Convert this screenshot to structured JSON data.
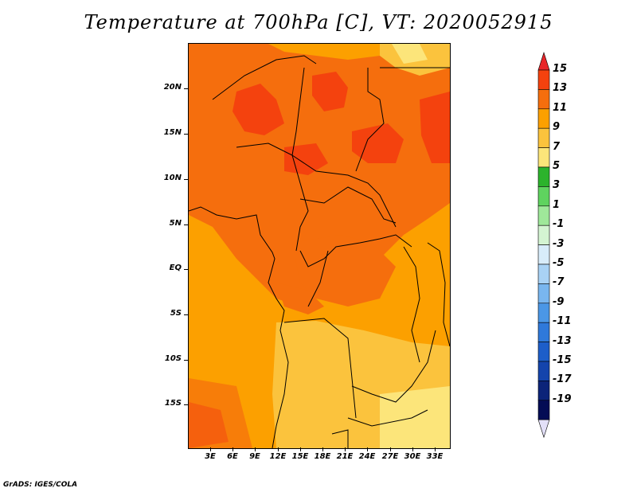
{
  "title": "Temperature at 700hPa [C], VT: 2020052915",
  "footer": "GrADS: IGES/COLA",
  "map": {
    "region": "Central Africa",
    "y_axis_labels": [
      "20N",
      "15N",
      "10N",
      "5N",
      "EQ",
      "5S",
      "10S",
      "15S"
    ],
    "x_axis_labels": [
      "3E",
      "6E",
      "9E",
      "12E",
      "15E",
      "18E",
      "21E",
      "24E",
      "27E",
      "30E",
      "33E"
    ]
  },
  "colorbar": {
    "labels": [
      "15",
      "13",
      "11",
      "9",
      "7",
      "5",
      "3",
      "1",
      "-1",
      "-3",
      "-5",
      "-7",
      "-9",
      "-11",
      "-13",
      "-15",
      "-17",
      "-19"
    ],
    "colors": [
      "#e8262a",
      "#f4420e",
      "#f56e0d",
      "#fca000",
      "#fbc33d",
      "#fce57a",
      "#2cb32c",
      "#5fd35f",
      "#9fe89a",
      "#d4f4d2",
      "#d8ecfa",
      "#a9d2f5",
      "#79b6ef",
      "#4b97e6",
      "#2f79da",
      "#1d5ec9",
      "#1444ac",
      "#0c2479",
      "#040c55",
      "#e3e0f8"
    ]
  },
  "colors": {
    "warmest": "#e8262a",
    "hot": "#f4420e",
    "warm": "#f56e0d",
    "mild": "#fca000",
    "cool": "#fbc33d",
    "pale": "#fce57a"
  }
}
